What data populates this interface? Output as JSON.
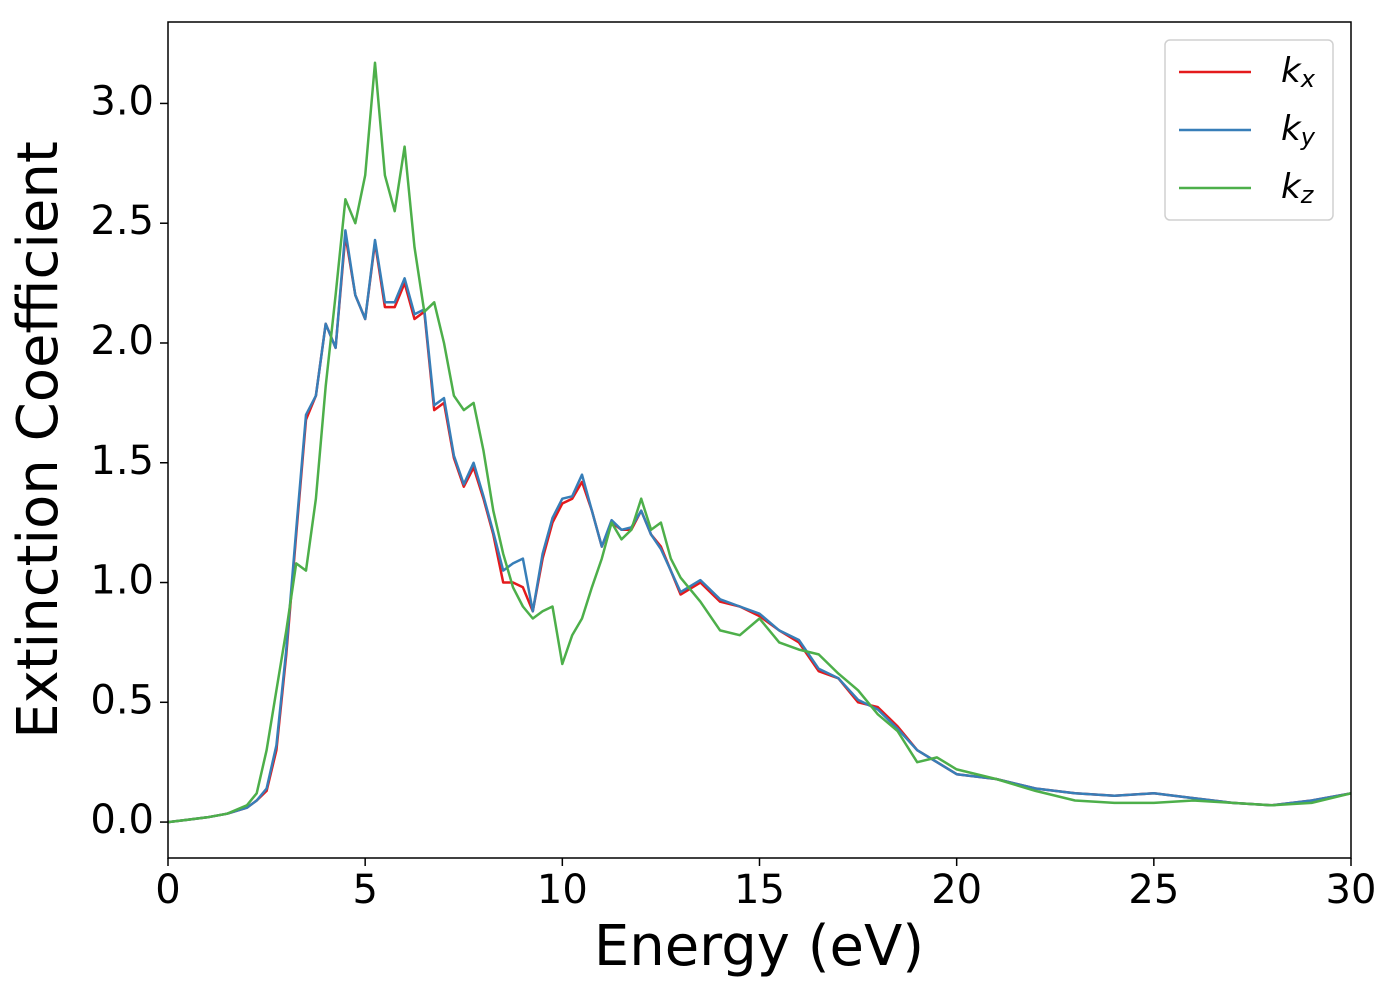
{
  "chart_data": {
    "type": "line",
    "xlabel": "Energy (eV)",
    "ylabel": "Extinction Coefficient",
    "x": [
      0,
      0.5,
      1,
      1.5,
      2,
      2.25,
      2.5,
      2.75,
      3,
      3.25,
      3.5,
      3.75,
      4,
      4.25,
      4.5,
      4.75,
      5,
      5.25,
      5.5,
      5.75,
      6,
      6.25,
      6.5,
      6.75,
      7,
      7.25,
      7.5,
      7.75,
      8,
      8.25,
      8.5,
      8.75,
      9,
      9.25,
      9.5,
      9.75,
      10,
      10.25,
      10.5,
      10.75,
      11,
      11.25,
      11.5,
      11.75,
      12,
      12.25,
      12.5,
      12.75,
      13,
      13.5,
      14,
      14.5,
      15,
      15.5,
      16,
      16.5,
      17,
      17.5,
      18,
      18.5,
      19,
      19.5,
      20,
      21,
      22,
      23,
      24,
      25,
      26,
      27,
      28,
      29,
      30
    ],
    "series": [
      {
        "name": "kx",
        "color": "#e41a1c",
        "values": [
          0,
          0.01,
          0.02,
          0.035,
          0.06,
          0.09,
          0.13,
          0.3,
          0.7,
          1.2,
          1.68,
          1.78,
          2.08,
          1.98,
          2.45,
          2.2,
          2.1,
          2.42,
          2.15,
          2.15,
          2.25,
          2.1,
          2.13,
          1.72,
          1.75,
          1.52,
          1.4,
          1.48,
          1.35,
          1.2,
          1.0,
          1.0,
          0.98,
          0.88,
          1.1,
          1.25,
          1.33,
          1.35,
          1.42,
          1.3,
          1.15,
          1.25,
          1.22,
          1.22,
          1.3,
          1.2,
          1.15,
          1.05,
          0.95,
          1.0,
          0.92,
          0.9,
          0.86,
          0.8,
          0.75,
          0.63,
          0.6,
          0.5,
          0.48,
          0.4,
          0.3,
          0.25,
          0.2,
          0.18,
          0.14,
          0.12,
          0.11,
          0.12,
          0.1,
          0.08,
          0.07,
          0.09,
          0.12
        ]
      },
      {
        "name": "ky",
        "color": "#377eb8",
        "values": [
          0,
          0.01,
          0.02,
          0.035,
          0.06,
          0.09,
          0.14,
          0.32,
          0.72,
          1.22,
          1.7,
          1.78,
          2.08,
          1.98,
          2.47,
          2.2,
          2.1,
          2.43,
          2.17,
          2.17,
          2.27,
          2.12,
          2.14,
          1.74,
          1.77,
          1.53,
          1.41,
          1.5,
          1.36,
          1.21,
          1.05,
          1.08,
          1.1,
          0.88,
          1.12,
          1.27,
          1.35,
          1.36,
          1.45,
          1.3,
          1.15,
          1.26,
          1.22,
          1.23,
          1.3,
          1.2,
          1.14,
          1.05,
          0.96,
          1.01,
          0.93,
          0.9,
          0.87,
          0.8,
          0.76,
          0.64,
          0.6,
          0.51,
          0.47,
          0.39,
          0.3,
          0.25,
          0.2,
          0.18,
          0.14,
          0.12,
          0.11,
          0.12,
          0.1,
          0.08,
          0.07,
          0.09,
          0.12
        ]
      },
      {
        "name": "kz",
        "color": "#4daf4a",
        "values": [
          0,
          0.01,
          0.02,
          0.035,
          0.07,
          0.12,
          0.3,
          0.55,
          0.8,
          1.08,
          1.05,
          1.35,
          1.82,
          2.2,
          2.6,
          2.5,
          2.7,
          3.17,
          2.7,
          2.55,
          2.82,
          2.4,
          2.13,
          2.17,
          2.0,
          1.78,
          1.72,
          1.75,
          1.55,
          1.3,
          1.12,
          0.98,
          0.9,
          0.85,
          0.88,
          0.9,
          0.66,
          0.78,
          0.85,
          0.98,
          1.1,
          1.25,
          1.18,
          1.22,
          1.35,
          1.22,
          1.25,
          1.1,
          1.02,
          0.92,
          0.8,
          0.78,
          0.85,
          0.75,
          0.72,
          0.7,
          0.62,
          0.55,
          0.45,
          0.38,
          0.25,
          0.27,
          0.22,
          0.18,
          0.13,
          0.09,
          0.08,
          0.08,
          0.09,
          0.08,
          0.07,
          0.08,
          0.12
        ]
      }
    ],
    "xlim": [
      0,
      30
    ],
    "xticks": [
      0,
      5,
      10,
      15,
      20,
      25,
      30
    ],
    "ylim": [
      -0.15,
      3.34
    ],
    "yticks": [
      {
        "value": 0,
        "label": "0.0"
      },
      0.5,
      {
        "value": 1,
        "label": "1.0"
      },
      1.5,
      {
        "value": 2,
        "label": "2.0"
      },
      2.5,
      {
        "value": 3,
        "label": "3.0"
      }
    ],
    "legend": "upper right",
    "grid": false
  }
}
